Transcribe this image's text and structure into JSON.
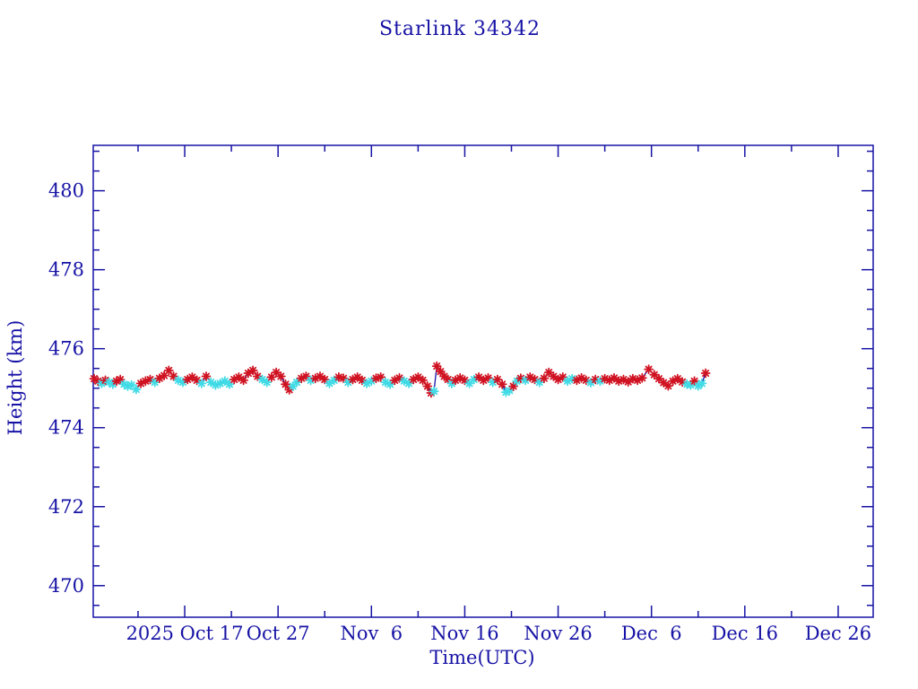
{
  "window": {
    "title": "Starlink 34342"
  },
  "chart_data": {
    "type": "line",
    "title": "Starlink 34342",
    "xlabel": "Time(UTC)",
    "ylabel": "Height (km)",
    "x_unit": "days since 2025 Oct 07 00:00 UTC",
    "xlim": [
      0.2,
      83.75
    ],
    "ylim": [
      469.2,
      481.15
    ],
    "grid": false,
    "legend": null,
    "colors": {
      "axis": "#1713a5",
      "line": "#1713a5",
      "marker_red": "#d01322",
      "marker_cyan": "#41dbe6",
      "background": "#ffffff"
    },
    "x_major_ticks": [
      {
        "day": 10,
        "label": "2025 Oct 17"
      },
      {
        "day": 20,
        "label": "Oct 27"
      },
      {
        "day": 30,
        "label": "Nov  6"
      },
      {
        "day": 40,
        "label": "Nov 16"
      },
      {
        "day": 50,
        "label": "Nov 26"
      },
      {
        "day": 60,
        "label": "Dec  6"
      },
      {
        "day": 70,
        "label": "Dec 16"
      },
      {
        "day": 80,
        "label": "Dec 26"
      }
    ],
    "x_minor_ticks": [
      5,
      15,
      25,
      35,
      45,
      55,
      65,
      75
    ],
    "y_major_ticks": [
      470,
      472,
      474,
      476,
      478,
      480
    ],
    "y_minor_step": 0.5,
    "series": [
      {
        "name": "height_km",
        "marker": "asterisk",
        "note": "color r = red marker, c = cyan marker; x = days since 2025-10-07",
        "points": [
          [
            0.3,
            475.24,
            "r"
          ],
          [
            0.7,
            475.18,
            "r"
          ],
          [
            1.1,
            475.12,
            "c"
          ],
          [
            1.5,
            475.2,
            "r"
          ],
          [
            1.9,
            475.15,
            "c"
          ],
          [
            2.3,
            475.1,
            "c"
          ],
          [
            2.7,
            475.18,
            "r"
          ],
          [
            3.1,
            475.22,
            "r"
          ],
          [
            3.5,
            475.1,
            "c"
          ],
          [
            3.9,
            475.05,
            "c"
          ],
          [
            4.3,
            475.08,
            "c"
          ],
          [
            4.8,
            474.97,
            "c"
          ],
          [
            5.3,
            475.12,
            "r"
          ],
          [
            5.8,
            475.18,
            "r"
          ],
          [
            6.3,
            475.22,
            "r"
          ],
          [
            6.8,
            475.15,
            "c"
          ],
          [
            7.3,
            475.25,
            "r"
          ],
          [
            7.8,
            475.32,
            "r"
          ],
          [
            8.3,
            475.45,
            "r"
          ],
          [
            8.8,
            475.3,
            "r"
          ],
          [
            9.3,
            475.2,
            "c"
          ],
          [
            9.8,
            475.15,
            "c"
          ],
          [
            10.3,
            475.22,
            "r"
          ],
          [
            10.8,
            475.28,
            "r"
          ],
          [
            11.3,
            475.2,
            "r"
          ],
          [
            11.8,
            475.12,
            "c"
          ],
          [
            12.3,
            475.3,
            "r"
          ],
          [
            12.8,
            475.15,
            "c"
          ],
          [
            13.3,
            475.08,
            "c"
          ],
          [
            13.8,
            475.12,
            "c"
          ],
          [
            14.3,
            475.18,
            "c"
          ],
          [
            14.8,
            475.1,
            "c"
          ],
          [
            15.3,
            475.22,
            "r"
          ],
          [
            15.8,
            475.28,
            "r"
          ],
          [
            16.3,
            475.2,
            "r"
          ],
          [
            16.8,
            475.38,
            "r"
          ],
          [
            17.3,
            475.45,
            "r"
          ],
          [
            17.8,
            475.3,
            "r"
          ],
          [
            18.3,
            475.22,
            "c"
          ],
          [
            18.8,
            475.15,
            "c"
          ],
          [
            19.3,
            475.28,
            "r"
          ],
          [
            19.8,
            475.4,
            "r"
          ],
          [
            20.3,
            475.3,
            "r"
          ],
          [
            20.8,
            475.1,
            "r"
          ],
          [
            21.2,
            474.96,
            "r"
          ],
          [
            21.6,
            475.05,
            "c"
          ],
          [
            22.0,
            475.15,
            "c"
          ],
          [
            22.5,
            475.25,
            "r"
          ],
          [
            23.0,
            475.3,
            "r"
          ],
          [
            23.5,
            475.2,
            "c"
          ],
          [
            24.0,
            475.25,
            "r"
          ],
          [
            24.5,
            475.3,
            "r"
          ],
          [
            25.0,
            475.22,
            "r"
          ],
          [
            25.5,
            475.12,
            "c"
          ],
          [
            26.0,
            475.2,
            "c"
          ],
          [
            26.5,
            475.28,
            "r"
          ],
          [
            27.0,
            475.25,
            "r"
          ],
          [
            27.5,
            475.15,
            "c"
          ],
          [
            28.0,
            475.22,
            "r"
          ],
          [
            28.5,
            475.28,
            "r"
          ],
          [
            29.0,
            475.2,
            "r"
          ],
          [
            29.5,
            475.12,
            "c"
          ],
          [
            30.0,
            475.18,
            "c"
          ],
          [
            30.5,
            475.25,
            "r"
          ],
          [
            31.0,
            475.28,
            "r"
          ],
          [
            31.5,
            475.15,
            "c"
          ],
          [
            32.0,
            475.1,
            "c"
          ],
          [
            32.5,
            475.2,
            "r"
          ],
          [
            33.0,
            475.26,
            "r"
          ],
          [
            33.5,
            475.18,
            "c"
          ],
          [
            34.0,
            475.12,
            "c"
          ],
          [
            34.5,
            475.22,
            "r"
          ],
          [
            35.0,
            475.28,
            "r"
          ],
          [
            35.5,
            475.2,
            "r"
          ],
          [
            36.0,
            475.05,
            "r"
          ],
          [
            36.4,
            474.88,
            "r"
          ],
          [
            36.7,
            474.92,
            "c"
          ],
          [
            37.0,
            475.56,
            "r"
          ],
          [
            37.4,
            475.42,
            "r"
          ],
          [
            37.8,
            475.3,
            "r"
          ],
          [
            38.2,
            475.22,
            "r"
          ],
          [
            38.6,
            475.12,
            "c"
          ],
          [
            39.0,
            475.2,
            "r"
          ],
          [
            39.5,
            475.26,
            "r"
          ],
          [
            40.0,
            475.2,
            "r"
          ],
          [
            40.5,
            475.12,
            "c"
          ],
          [
            41.0,
            475.22,
            "c"
          ],
          [
            41.5,
            475.28,
            "r"
          ],
          [
            42.0,
            475.2,
            "r"
          ],
          [
            42.5,
            475.26,
            "r"
          ],
          [
            43.0,
            475.15,
            "c"
          ],
          [
            43.5,
            475.22,
            "r"
          ],
          [
            44.0,
            475.1,
            "r"
          ],
          [
            44.4,
            474.9,
            "c"
          ],
          [
            44.8,
            474.94,
            "c"
          ],
          [
            45.2,
            475.05,
            "r"
          ],
          [
            45.6,
            475.18,
            "c"
          ],
          [
            46.0,
            475.25,
            "r"
          ],
          [
            46.5,
            475.2,
            "c"
          ],
          [
            47.0,
            475.28,
            "r"
          ],
          [
            47.5,
            475.22,
            "r"
          ],
          [
            48.0,
            475.15,
            "c"
          ],
          [
            48.5,
            475.25,
            "r"
          ],
          [
            49.0,
            475.4,
            "r"
          ],
          [
            49.5,
            475.3,
            "r"
          ],
          [
            50.0,
            475.22,
            "r"
          ],
          [
            50.5,
            475.28,
            "r"
          ],
          [
            51.0,
            475.18,
            "c"
          ],
          [
            51.5,
            475.24,
            "c"
          ],
          [
            52.0,
            475.2,
            "r"
          ],
          [
            52.5,
            475.26,
            "r"
          ],
          [
            53.0,
            475.2,
            "r"
          ],
          [
            53.5,
            475.14,
            "c"
          ],
          [
            54.0,
            475.22,
            "r"
          ],
          [
            54.5,
            475.18,
            "c"
          ],
          [
            55.0,
            475.24,
            "r"
          ],
          [
            55.5,
            475.2,
            "r"
          ],
          [
            56.0,
            475.26,
            "r"
          ],
          [
            56.5,
            475.18,
            "r"
          ],
          [
            57.0,
            475.22,
            "r"
          ],
          [
            57.5,
            475.16,
            "r"
          ],
          [
            58.0,
            475.24,
            "r"
          ],
          [
            58.5,
            475.2,
            "r"
          ],
          [
            59.0,
            475.26,
            "r"
          ],
          [
            59.7,
            475.48,
            "r"
          ],
          [
            60.3,
            475.34,
            "r"
          ],
          [
            60.8,
            475.24,
            "r"
          ],
          [
            61.3,
            475.14,
            "r"
          ],
          [
            61.8,
            475.06,
            "r"
          ],
          [
            62.3,
            475.18,
            "r"
          ],
          [
            62.8,
            475.24,
            "r"
          ],
          [
            63.3,
            475.16,
            "r"
          ],
          [
            63.8,
            475.1,
            "c"
          ],
          [
            64.2,
            475.08,
            "c"
          ],
          [
            64.6,
            475.18,
            "r"
          ],
          [
            65.0,
            475.06,
            "c"
          ],
          [
            65.4,
            475.12,
            "c"
          ],
          [
            65.8,
            475.38,
            "r"
          ]
        ]
      }
    ]
  }
}
